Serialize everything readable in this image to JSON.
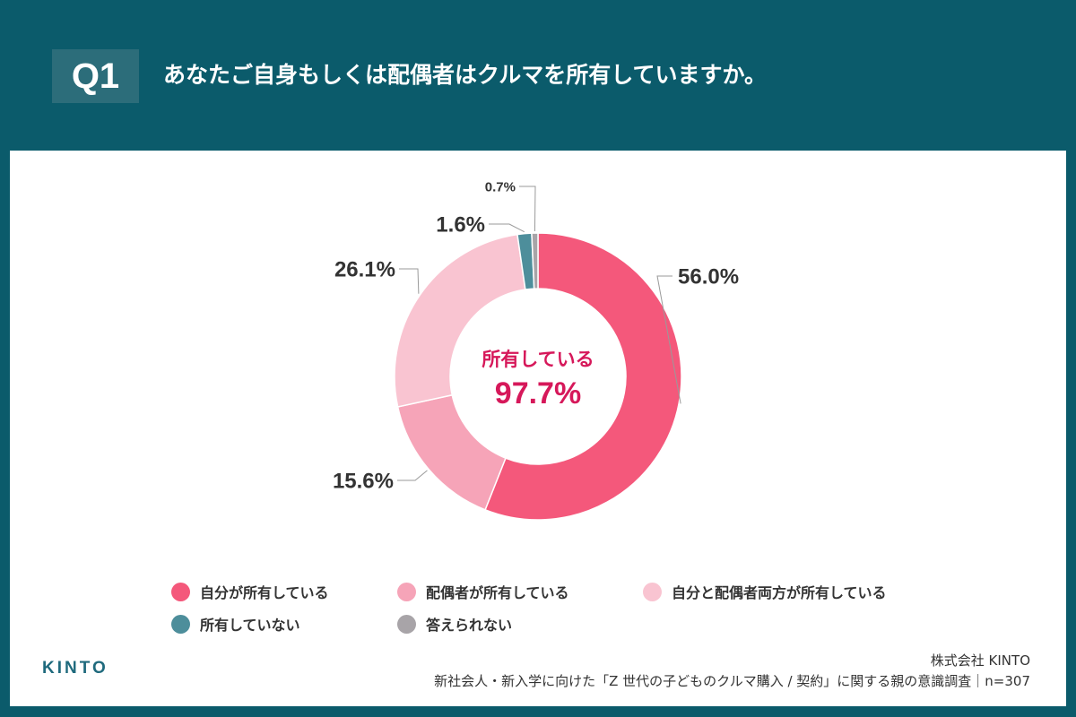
{
  "header": {
    "q_label": "Q1",
    "question": "あなたご自身もしくは配偶者はクルマを所有していますか。"
  },
  "chart_data": {
    "type": "donut",
    "categories": [
      "自分が所有している",
      "配偶者が所有している",
      "自分と配偶者両方が所有している",
      "所有していない",
      "答えられない"
    ],
    "values": [
      56.0,
      15.6,
      26.1,
      1.6,
      0.7
    ],
    "labels": [
      "56.0%",
      "15.6%",
      "26.1%",
      "1.6%",
      "0.7%"
    ],
    "colors": [
      "#f4587b",
      "#f6a4b8",
      "#f9c4d1",
      "#4d8e9b",
      "#a8a4a8"
    ],
    "center_label": "所有している",
    "center_value": "97.7%",
    "center_color": "#d6185a",
    "legend_position": "bottom"
  },
  "footer": {
    "logo": "KINTO",
    "company": "株式会社 KINTO",
    "source": "新社会人・新入学に向けた「Z 世代の子どものクルマ購入 / 契約」に関する親の意識調査｜n=307"
  }
}
